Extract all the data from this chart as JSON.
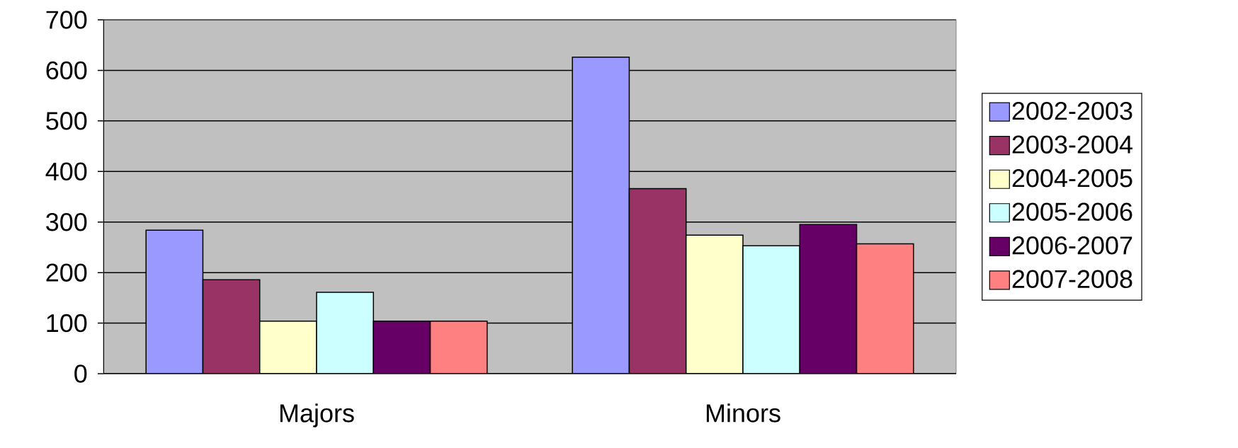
{
  "chart_data": {
    "type": "bar",
    "categories": [
      "Majors",
      "Minors"
    ],
    "series": [
      {
        "name": "2002-2003",
        "color": "#9999ff",
        "values": [
          284,
          626
        ]
      },
      {
        "name": "2003-2004",
        "color": "#993366",
        "values": [
          186,
          366
        ]
      },
      {
        "name": "2004-2005",
        "color": "#ffffcc",
        "values": [
          104,
          274
        ]
      },
      {
        "name": "2005-2006",
        "color": "#ccffff",
        "values": [
          161,
          253
        ]
      },
      {
        "name": "2006-2007",
        "color": "#660066",
        "values": [
          104,
          295
        ]
      },
      {
        "name": "2007-2008",
        "color": "#ff8080",
        "values": [
          104,
          257
        ]
      }
    ],
    "ylim": [
      0,
      700
    ],
    "yticks": [
      0,
      100,
      200,
      300,
      400,
      500,
      600,
      700
    ],
    "grid": "y",
    "legend": "right"
  }
}
